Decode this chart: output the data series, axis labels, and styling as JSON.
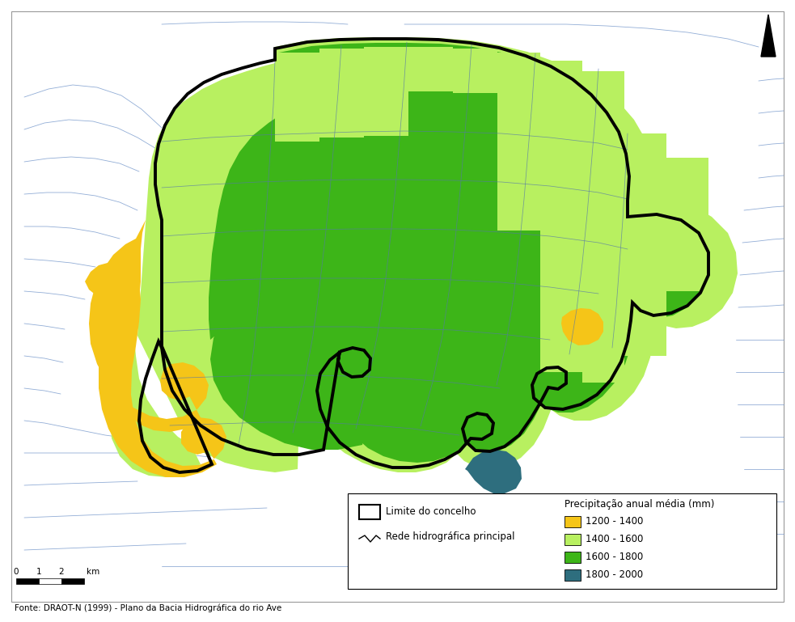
{
  "figsize": [
    9.83,
    7.69
  ],
  "dpi": 100,
  "background_color": "#ffffff",
  "color_1200_1400": "#f5c518",
  "color_1400_1600": "#b8f060",
  "color_1600_1800": "#3db518",
  "color_1800_2000": "#2e6e7e",
  "thick_border_color": "#000000",
  "thin_line_color": "#7799cc",
  "parish_line_color": "#5577aa",
  "legend_title": "Precipitação anual média (mm)",
  "legend_items": [
    {
      "label": "1200 - 1400",
      "color": "#f5c518"
    },
    {
      "label": "1400 - 1600",
      "color": "#b8f060"
    },
    {
      "label": "1600 - 1800",
      "color": "#3db518"
    },
    {
      "label": "1800 - 2000",
      "color": "#2e6e7e"
    }
  ],
  "legend_symbol1_label": "Limite do concelho",
  "legend_symbol2_label": "Rede hidrográfica principal",
  "source_text": "Fonte: DRAOT-N (1999) - Plano da Bacia Hidrográfica do rio Ave"
}
